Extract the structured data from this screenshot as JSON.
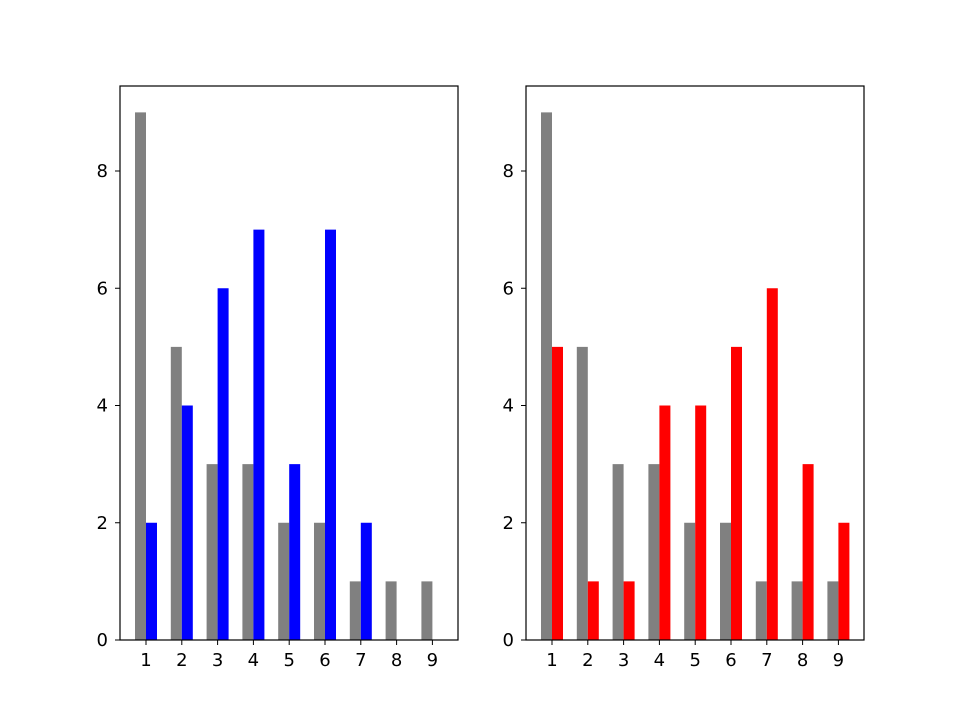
{
  "chart_data": [
    {
      "type": "bar",
      "title": "",
      "xlabel": "",
      "ylabel": "",
      "categories": [
        "1",
        "2",
        "3",
        "4",
        "5",
        "6",
        "7",
        "8",
        "9"
      ],
      "ylim": [
        0,
        9.45
      ],
      "yticks": [
        "0",
        "2",
        "4",
        "6",
        "8"
      ],
      "grid": false,
      "series": [
        {
          "color": "#808080",
          "values": [
            9,
            5,
            3,
            3,
            2,
            2,
            1,
            1,
            1
          ]
        },
        {
          "color": "#0000ff",
          "values": [
            2,
            4,
            6,
            7,
            3,
            7,
            2,
            0,
            0
          ]
        }
      ]
    },
    {
      "type": "bar",
      "title": "",
      "xlabel": "",
      "ylabel": "",
      "categories": [
        "1",
        "2",
        "3",
        "4",
        "5",
        "6",
        "7",
        "8",
        "9"
      ],
      "ylim": [
        0,
        9.45
      ],
      "yticks": [
        "0",
        "2",
        "4",
        "6",
        "8"
      ],
      "grid": false,
      "series": [
        {
          "color": "#808080",
          "values": [
            9,
            5,
            3,
            3,
            2,
            2,
            1,
            1,
            1
          ]
        },
        {
          "color": "#ff0000",
          "values": [
            5,
            1,
            1,
            4,
            4,
            5,
            6,
            3,
            2
          ]
        }
      ]
    }
  ]
}
